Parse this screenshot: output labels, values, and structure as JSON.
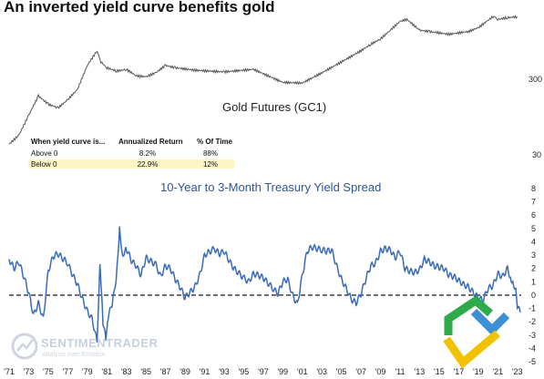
{
  "title": "An inverted yield curve benefits gold",
  "watermark": {
    "name": "SENTIMENTRADER",
    "tagline": "Analysis over Emotion"
  },
  "colors": {
    "gold_line": "#555555",
    "spread_line": "#3a6cb5",
    "table_highlight": "#fbf6c4",
    "panel_label_blue": "#2f5597",
    "logo_green": "#2eaa4a",
    "logo_blue": "#3b8fd4",
    "logo_yellow": "#f2c200"
  },
  "table": {
    "headers": [
      "When yield curve is...",
      "Annualized Return",
      "% Of Time"
    ],
    "rows": [
      {
        "condition": "Above 0",
        "return": "8.2%",
        "time": "88%"
      },
      {
        "condition": "Below 0",
        "return": "22.9%",
        "time": "12%"
      }
    ]
  },
  "chart_data": [
    {
      "type": "line",
      "title": "Gold Futures (GC1)",
      "scale": "log",
      "y_tick_labels": [
        "300",
        "30"
      ],
      "series": [
        {
          "x": [
            1971,
            1972,
            1973,
            1974,
            1975,
            1976,
            1977,
            1978,
            1979,
            1980,
            1980.4,
            1981,
            1982,
            1983,
            1984,
            1985,
            1986,
            1987,
            1988,
            1990,
            1993,
            1996,
            1999,
            2001,
            2003,
            2005,
            2007,
            2008,
            2009,
            2010,
            2011,
            2011.7,
            2013,
            2014,
            2016,
            2018,
            2019,
            2020,
            2020.6,
            2021,
            2022,
            2023
          ],
          "y": [
            42,
            55,
            100,
            180,
            140,
            125,
            160,
            220,
            450,
            700,
            500,
            420,
            380,
            400,
            330,
            320,
            360,
            450,
            420,
            390,
            370,
            400,
            270,
            265,
            360,
            500,
            700,
            850,
            1000,
            1300,
            1700,
            1800,
            1300,
            1250,
            1150,
            1250,
            1400,
            1750,
            2000,
            1800,
            1900,
            1950
          ]
        }
      ]
    },
    {
      "type": "line",
      "title": "10-Year to 3-Month Treasury Yield Spread",
      "ylim": [
        -5,
        8
      ],
      "y_ticks": [
        -5,
        -4,
        -3,
        -2,
        -1,
        0,
        1,
        2,
        3,
        4,
        5,
        6,
        7,
        8
      ],
      "x_tick_labels": [
        "'71",
        "'73",
        "'75",
        "'77",
        "'79",
        "'81",
        "'83",
        "'85",
        "'87",
        "'89",
        "'91",
        "'93",
        "'95",
        "'97",
        "'99",
        "'01",
        "'03",
        "'05",
        "'07",
        "'09",
        "'11",
        "'13",
        "'15",
        "'17",
        "'19",
        "'21",
        "'23"
      ],
      "reference_line": 0,
      "series": [
        {
          "x": [
            1971,
            1971.5,
            1972,
            1972.5,
            1973,
            1973.5,
            1974,
            1974.5,
            1975,
            1975.5,
            1976,
            1977,
            1977.5,
            1978,
            1978.5,
            1979,
            1979.5,
            1980,
            1980.3,
            1980.6,
            1980.9,
            1981.2,
            1981.6,
            1982,
            1982.3,
            1982.6,
            1983,
            1983.5,
            1984,
            1984.5,
            1985,
            1986,
            1986.5,
            1987,
            1987.5,
            1988,
            1988.5,
            1989,
            1989.5,
            1990,
            1990.5,
            1991,
            1992,
            1992.5,
            1993,
            1993.5,
            1994,
            1995,
            1995.5,
            1996,
            1996.5,
            1997,
            1998,
            1998.5,
            1999,
            1999.5,
            2000,
            2000.5,
            2001,
            2001.5,
            2002,
            2003,
            2003.5,
            2004,
            2004.5,
            2005,
            2005.5,
            2006,
            2006.5,
            2007,
            2007.5,
            2008,
            2008.5,
            2009,
            2009.5,
            2010,
            2010.5,
            2011,
            2011.5,
            2012,
            2012.5,
            2013,
            2013.5,
            2014,
            2014.5,
            2015,
            2015.5,
            2016,
            2016.5,
            2017,
            2017.5,
            2018,
            2018.5,
            2019,
            2019.5,
            2020,
            2020.5,
            2021,
            2021.5,
            2022,
            2022.3,
            2022.6,
            2022.9,
            2023,
            2023.3
          ],
          "y": [
            2.7,
            2.0,
            2.5,
            1.4,
            0.2,
            -1.5,
            -0.6,
            -1.8,
            1.8,
            2.9,
            3.1,
            2.4,
            1.5,
            0.8,
            -0.3,
            -1.2,
            -1.8,
            -3.5,
            2.5,
            -2.0,
            -3.3,
            -1.5,
            -0.5,
            1.5,
            5.0,
            3.0,
            3.5,
            2.6,
            2.2,
            1.5,
            2.8,
            2.3,
            1.4,
            2.2,
            2.0,
            1.2,
            0.6,
            -0.2,
            0.2,
            0.6,
            1.5,
            3.0,
            3.5,
            3.1,
            3.3,
            2.6,
            2.0,
            1.3,
            1.0,
            1.6,
            1.5,
            1.3,
            0.5,
            0.1,
            1.0,
            1.2,
            0.0,
            -0.7,
            1.5,
            3.3,
            3.6,
            3.4,
            3.3,
            3.4,
            2.2,
            1.2,
            0.5,
            -0.3,
            -0.6,
            0.1,
            1.2,
            2.2,
            2.4,
            3.3,
            3.5,
            3.4,
            2.8,
            3.3,
            2.0,
            1.8,
            1.7,
            1.9,
            2.7,
            2.5,
            2.2,
            2.1,
            2.0,
            1.5,
            1.4,
            1.1,
            0.8,
            0.6,
            0.2,
            -0.2,
            -0.4,
            0.5,
            0.7,
            1.6,
            1.4,
            2.0,
            1.3,
            0.9,
            0.2,
            -0.8,
            -1.3
          ]
        }
      ]
    }
  ]
}
